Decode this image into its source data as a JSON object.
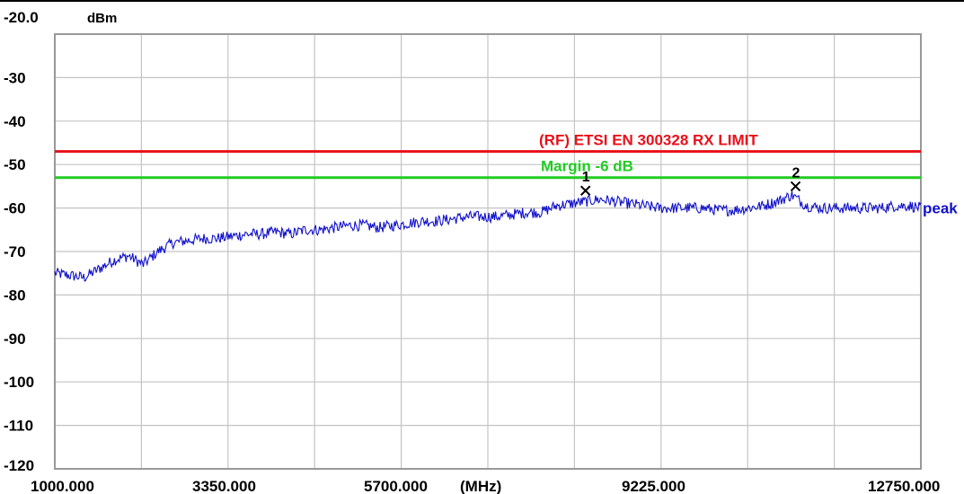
{
  "chart_data": {
    "type": "line",
    "ylabel_unit": "dBm",
    "xlabel_unit": "(MHz)",
    "xlim": [
      1000,
      12750
    ],
    "ylim": [
      -120,
      -20
    ],
    "grid": true,
    "x_ticks": [
      "1000.000",
      "3350.000",
      "5700.000",
      "9225.000",
      "12750.000"
    ],
    "y_ticks": [
      "-20.0",
      "-30",
      "-40",
      "-50",
      "-60",
      "-70",
      "-80",
      "-90",
      "-100",
      "-110",
      "-120"
    ],
    "limit_lines": [
      {
        "name": "(RF) ETSI EN 300328  RX LIMIT",
        "value": -47,
        "color": "#e8101a"
      },
      {
        "name": "Margin -6 dB",
        "value": -53,
        "color": "#22cc22"
      }
    ],
    "series": [
      {
        "name": "peak",
        "color": "#1010cc",
        "x": [
          1000,
          1200,
          1400,
          1600,
          1800,
          2000,
          2200,
          2400,
          2600,
          2800,
          3000,
          3200,
          3400,
          3600,
          3800,
          4000,
          4200,
          4400,
          4600,
          4800,
          5000,
          5200,
          5400,
          5600,
          5800,
          6000,
          6200,
          6400,
          6600,
          6800,
          7000,
          7200,
          7400,
          7600,
          7800,
          8000,
          8200,
          8400,
          8600,
          8800,
          9000,
          9200,
          9400,
          9600,
          9800,
          10000,
          10200,
          10400,
          10600,
          10800,
          11000,
          11200,
          11400,
          11600,
          11800,
          12000,
          12200,
          12400,
          12600,
          12750
        ],
        "y": [
          -75,
          -75.5,
          -76,
          -74,
          -72,
          -71,
          -73,
          -70,
          -68,
          -67.5,
          -67,
          -67,
          -66.5,
          -66,
          -66,
          -65.5,
          -66,
          -65,
          -65,
          -64.5,
          -64,
          -64,
          -64.5,
          -64,
          -63.5,
          -63,
          -63,
          -62.5,
          -62,
          -62,
          -62,
          -61.5,
          -61,
          -61,
          -59.5,
          -59,
          -58.5,
          -58,
          -58.5,
          -59,
          -59.5,
          -60,
          -60,
          -60,
          -60,
          -60.5,
          -60.5,
          -60,
          -59.5,
          -58.5,
          -57,
          -59.5,
          -60,
          -60,
          -60,
          -60,
          -60,
          -59.5,
          -59.5,
          -60
        ]
      }
    ],
    "markers": [
      {
        "label": "1",
        "x": 8200,
        "y": -56
      },
      {
        "label": "2",
        "x": 11050,
        "y": -55
      }
    ]
  }
}
